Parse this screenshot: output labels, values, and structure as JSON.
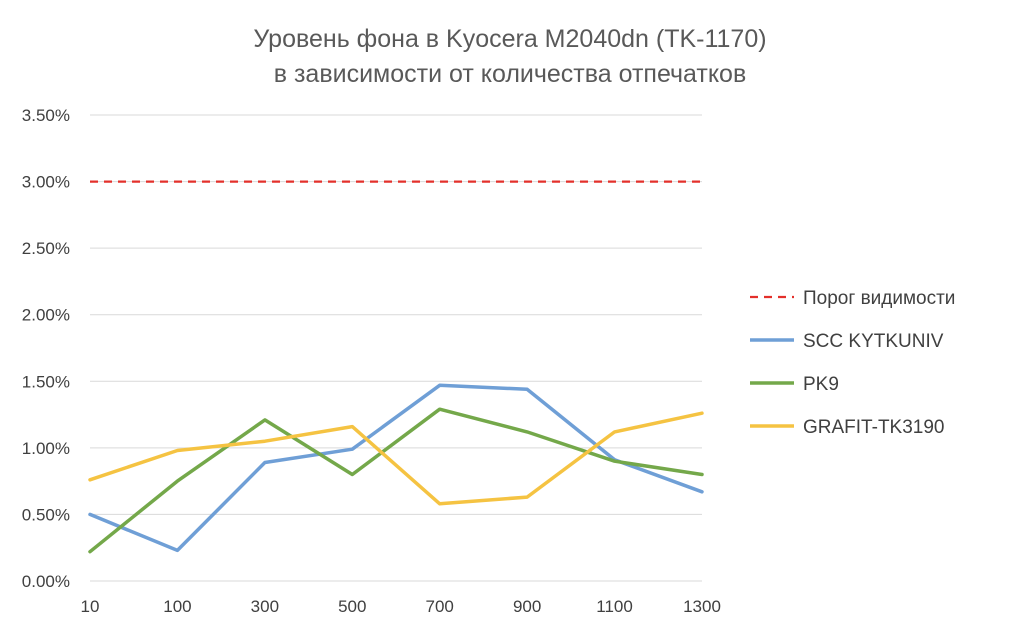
{
  "chart_data": {
    "type": "line",
    "title_lines": [
      "Уровень фона в Kyocera M2040dn (TK-1170)",
      "в зависимости от количества отпечатков"
    ],
    "xlabel": "",
    "ylabel": "",
    "categories": [
      "10",
      "100",
      "300",
      "500",
      "700",
      "900",
      "1100",
      "1300"
    ],
    "ylim": [
      0,
      0.035
    ],
    "y_ticks": [
      0,
      0.005,
      0.01,
      0.015,
      0.02,
      0.025,
      0.03,
      0.035
    ],
    "y_tick_labels": [
      "0.00%",
      "0.50%",
      "1.00%",
      "1.50%",
      "2.00%",
      "2.50%",
      "3.00%",
      "3.50%"
    ],
    "grid": "horizontal",
    "legend_position": "right",
    "series": [
      {
        "name": "Порог видимости",
        "color": "#e3302b",
        "dashed": true,
        "values": [
          0.03,
          0.03,
          0.03,
          0.03,
          0.03,
          0.03,
          0.03,
          0.03
        ]
      },
      {
        "name": "SCC KYTKUNIV",
        "color": "#6f9fd6",
        "dashed": false,
        "values": [
          0.005,
          0.0023,
          0.0089,
          0.0099,
          0.0147,
          0.0144,
          0.0091,
          0.0067
        ]
      },
      {
        "name": "PK9",
        "color": "#74a84a",
        "dashed": false,
        "values": [
          0.0022,
          0.0075,
          0.0121,
          0.008,
          0.0129,
          0.0112,
          0.009,
          0.008
        ]
      },
      {
        "name": "GRAFIT-TK3190",
        "color": "#f5c342",
        "dashed": false,
        "values": [
          0.0076,
          0.0098,
          0.0105,
          0.0116,
          0.0058,
          0.0063,
          0.0112,
          0.0126
        ]
      }
    ]
  }
}
